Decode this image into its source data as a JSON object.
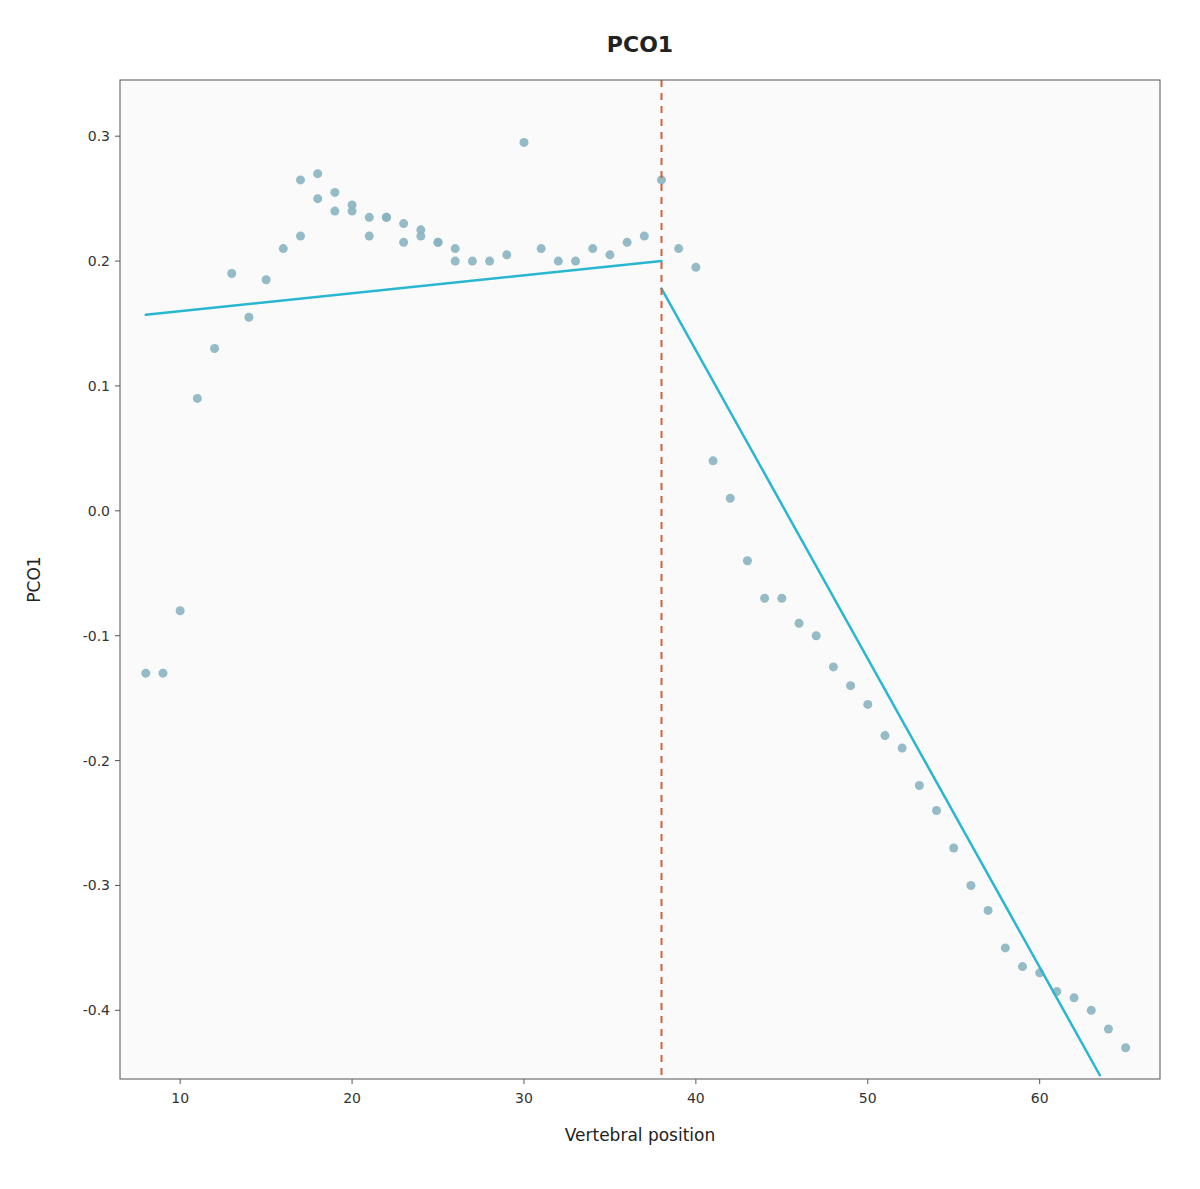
{
  "chart_data": {
    "type": "scatter",
    "title": "PCO1",
    "x_label": "Vertebral position",
    "y_label": "PCO1",
    "grid": false,
    "xlim": [
      6.5,
      67
    ],
    "ylim": [
      -0.455,
      0.345
    ],
    "xticks": [
      10,
      20,
      30,
      40,
      50,
      60
    ],
    "yticks": [
      -0.4,
      -0.3,
      -0.2,
      -0.1,
      {
        "value": 0,
        "label": "0.0"
      },
      0.1,
      0.2,
      0.3
    ],
    "series": [
      {
        "type": "scatter",
        "color": "#8ab4c0",
        "x": [
          8,
          9,
          10,
          11,
          12,
          13,
          14,
          15,
          16,
          17,
          17,
          18,
          18,
          19,
          19,
          20,
          20,
          21,
          21,
          22,
          22,
          23,
          23,
          24,
          24,
          25,
          25,
          26,
          26,
          27,
          28,
          29,
          30,
          31,
          32,
          33,
          34,
          35,
          36,
          37,
          38,
          39,
          40,
          41,
          42,
          43,
          44,
          45,
          46,
          47,
          48,
          49,
          50,
          51,
          52,
          53,
          54,
          55,
          56,
          57,
          58,
          59,
          60,
          61,
          62,
          63,
          64,
          65
        ],
        "values": [
          -0.13,
          -0.13,
          -0.08,
          0.09,
          0.13,
          0.19,
          0.155,
          0.185,
          0.21,
          0.265,
          0.22,
          0.27,
          0.25,
          0.255,
          0.24,
          0.245,
          0.24,
          0.235,
          0.22,
          0.235,
          0.235,
          0.23,
          0.215,
          0.225,
          0.22,
          0.215,
          0.215,
          0.21,
          0.2,
          0.2,
          0.2,
          0.205,
          0.295,
          0.21,
          0.2,
          0.2,
          0.21,
          0.205,
          0.215,
          0.22,
          0.265,
          0.21,
          0.195,
          0.04,
          0.01,
          -0.04,
          -0.07,
          -0.07,
          -0.09,
          -0.1,
          -0.125,
          -0.14,
          -0.155,
          -0.18,
          -0.19,
          -0.22,
          -0.24,
          -0.27,
          -0.3,
          -0.32,
          -0.35,
          -0.365,
          -0.37,
          -0.385,
          -0.39,
          -0.4,
          -0.415,
          -0.43
        ]
      },
      {
        "type": "line",
        "color": "#29b6d0",
        "x": [
          8,
          38
        ],
        "values": [
          0.157,
          0.2
        ]
      },
      {
        "type": "line",
        "color": "#29b6d0",
        "x": [
          38,
          63.5
        ],
        "values": [
          0.178,
          -0.452
        ]
      },
      {
        "type": "vline",
        "color": "#d95f3b",
        "line_style": "dashed",
        "x": [
          38
        ]
      }
    ]
  }
}
